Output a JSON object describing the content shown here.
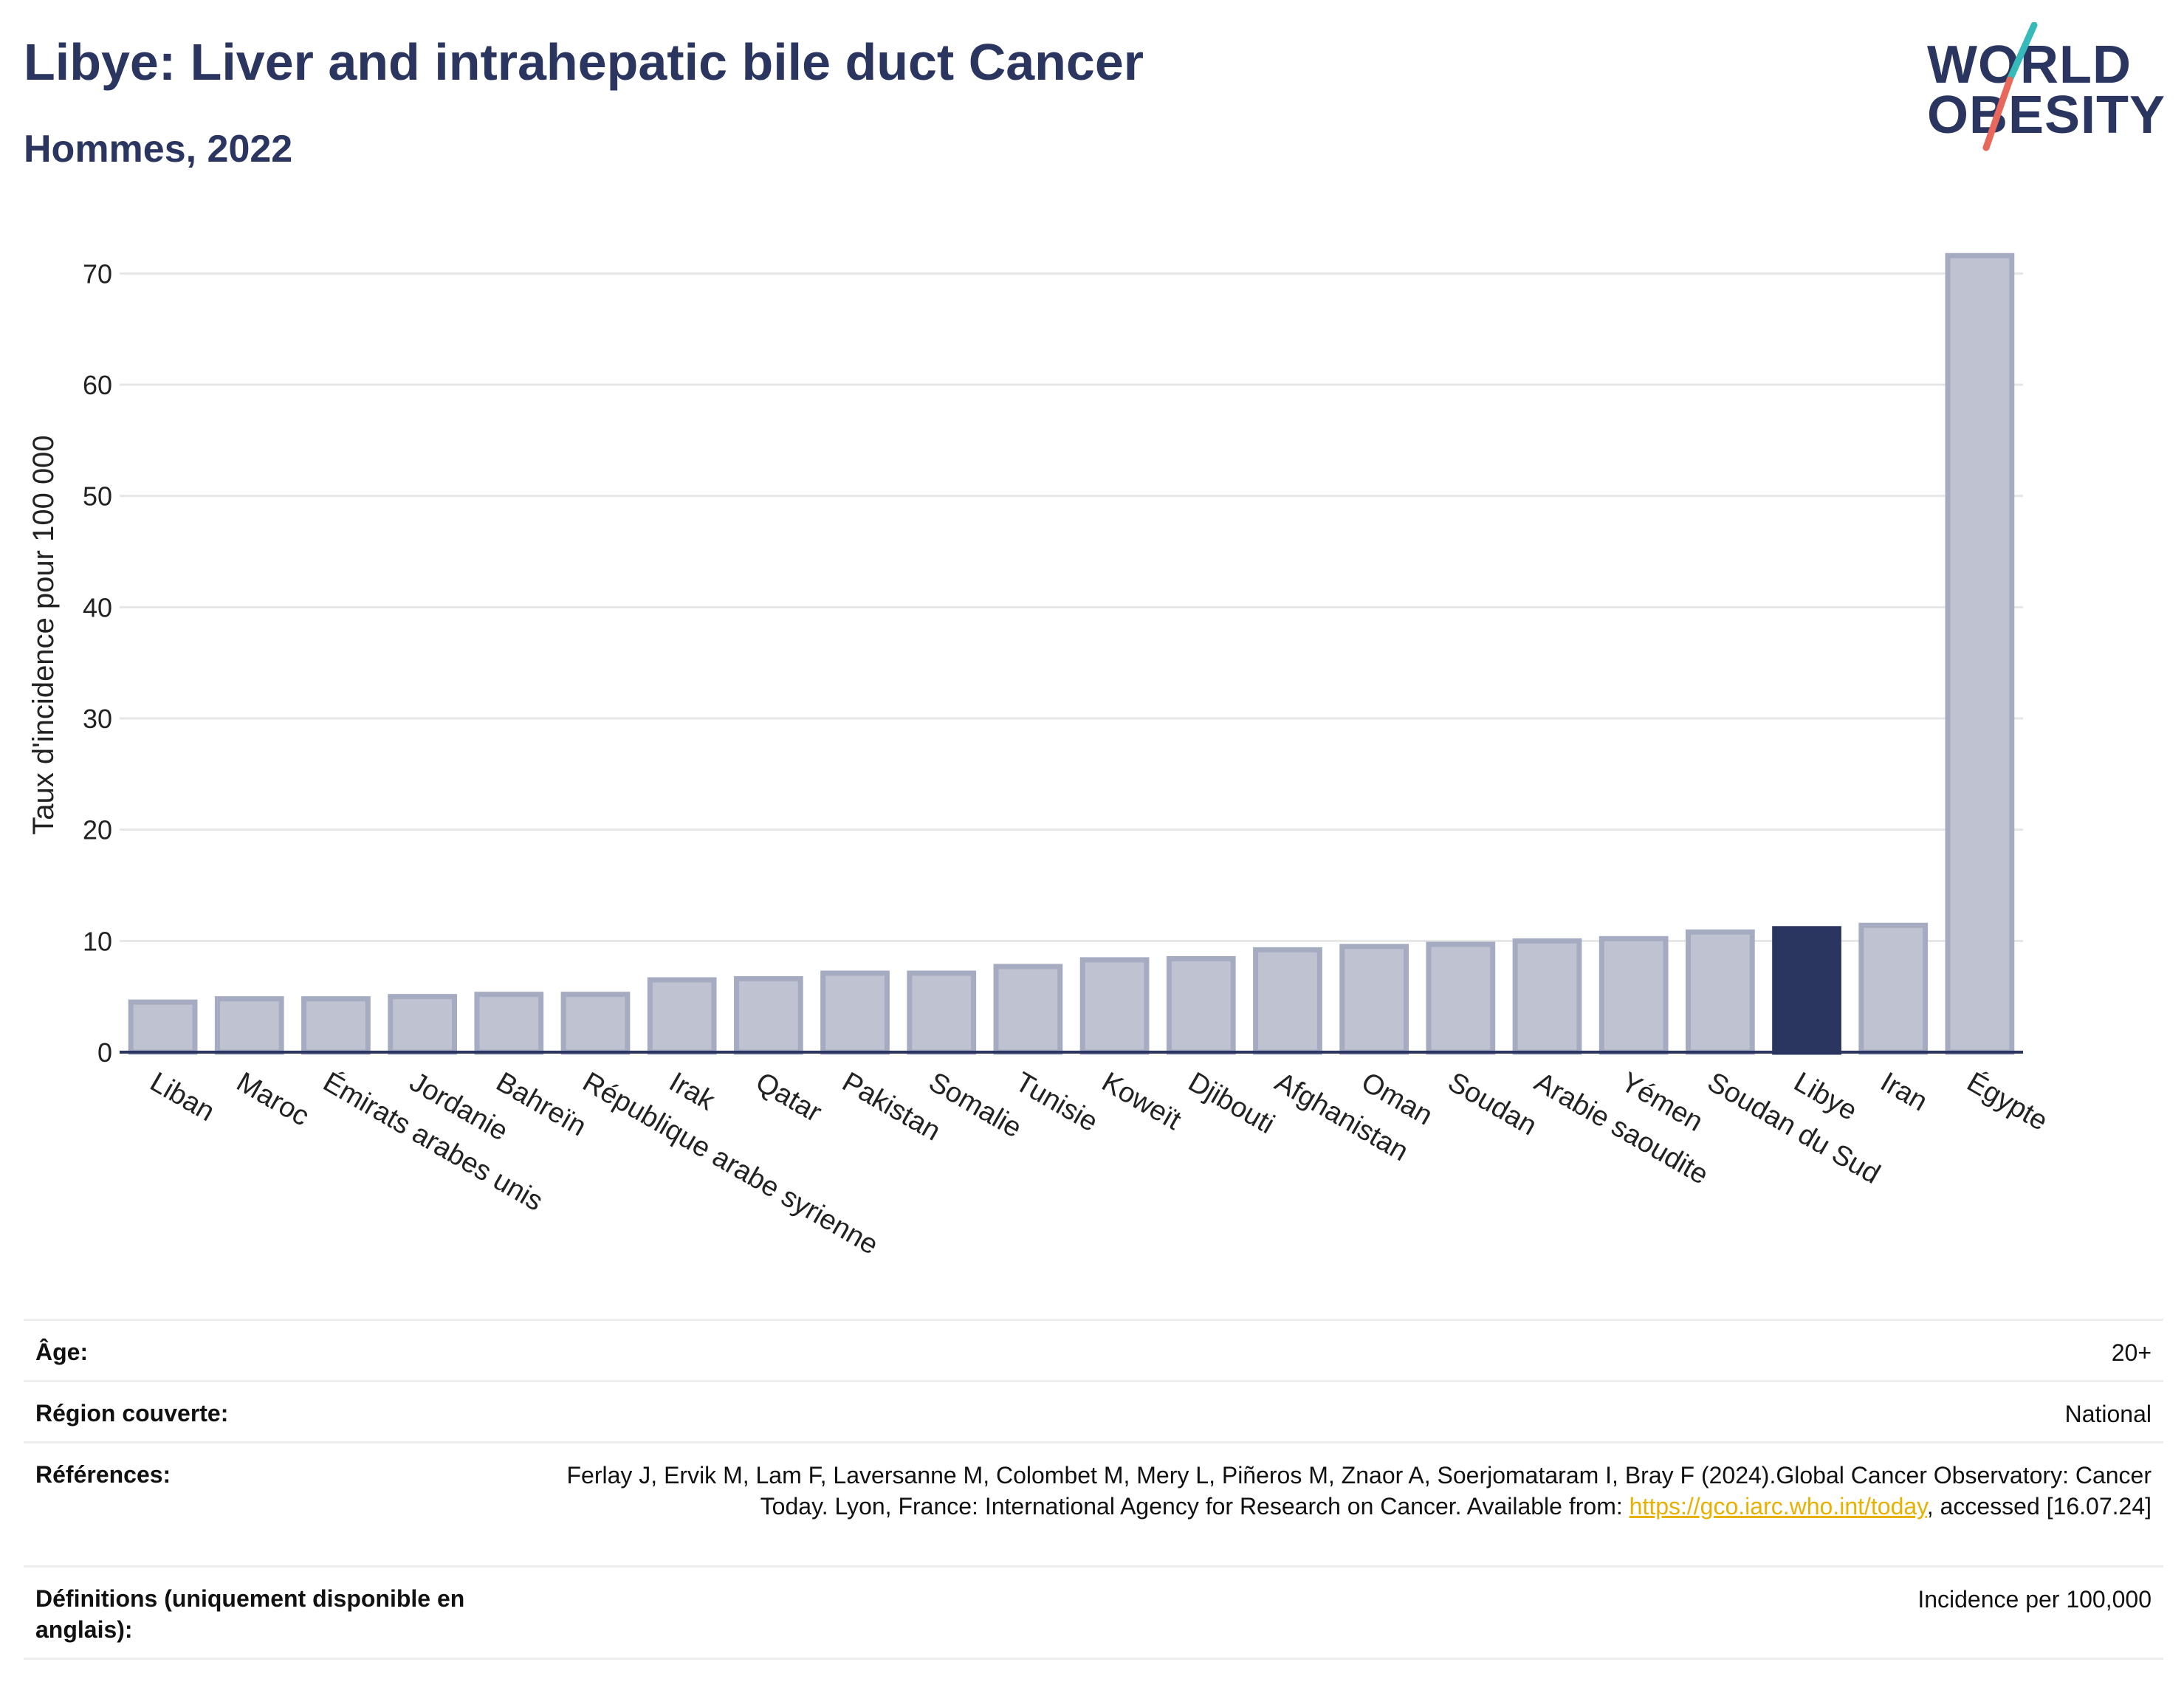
{
  "header": {
    "title": "Libye: Liver and intrahepatic bile duct Cancer",
    "subtitle": "Hommes, 2022"
  },
  "logo": {
    "line1": "WORLD",
    "line2": "OBESITY",
    "slash_colors": [
      "#36b9b9",
      "#e8685c"
    ]
  },
  "colors": {
    "bar_default": "#bfc3d1",
    "bar_border": "#a5abc1",
    "bar_highlight": "#2a3560",
    "text": "#2a3560",
    "link": "#e8b000"
  },
  "chart_data": {
    "type": "bar",
    "ylabel": "Taux d'incidence pour 100 000",
    "ylim": [
      0,
      75
    ],
    "yticks": [
      0,
      10,
      20,
      30,
      40,
      50,
      60,
      70
    ],
    "grid": true,
    "categories": [
      "Liban",
      "Maroc",
      "Émirats arabes unis",
      "Jordanie",
      "Bahreïn",
      "République arabe syrienne",
      "Irak",
      "Qatar",
      "Pakistan",
      "Somalie",
      "Tunisie",
      "Koweït",
      "Djibouti",
      "Afghanistan",
      "Oman",
      "Soudan",
      "Arabie saoudite",
      "Yémen",
      "Soudan du Sud",
      "Libye",
      "Iran",
      "Égypte"
    ],
    "values": [
      4.5,
      4.8,
      4.8,
      5.0,
      5.2,
      5.2,
      6.5,
      6.6,
      7.1,
      7.1,
      7.7,
      8.3,
      8.4,
      9.2,
      9.5,
      9.7,
      10.0,
      10.2,
      10.8,
      11.1,
      11.4,
      71.6
    ],
    "highlight": "Libye"
  },
  "info": {
    "rows": [
      {
        "label": "Âge:",
        "value": "20+"
      },
      {
        "label": "Région couverte:",
        "value": "National"
      },
      {
        "label": "Références:",
        "value_before": "Ferlay J, Ervik M, Lam F, Laversanne M, Colombet M, Mery L, Piñeros M, Znaor A, Soerjomataram I, Bray F (2024).Global Cancer Observatory: Cancer Today. Lyon, France: International Agency for Research on Cancer. Available from: ",
        "link": "https://gco.iarc.who.int/today",
        "value_after": ", accessed [16.07.24]"
      },
      {
        "label": "Définitions (uniquement disponible en anglais):",
        "value": "Incidence per 100,000"
      }
    ]
  }
}
